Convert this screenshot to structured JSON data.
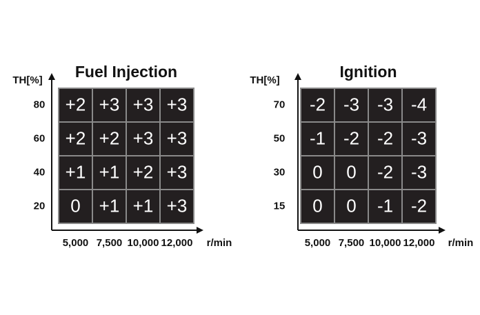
{
  "panels": [
    {
      "title": "Fuel Injection",
      "y_label": "TH[%]",
      "x_label": "r/min",
      "rows": [
        "80",
        "60",
        "40",
        "20"
      ],
      "columns": [
        "5,000",
        "7,500",
        "10,000",
        "12,000"
      ],
      "cells": [
        [
          "+2",
          "+3",
          "+3",
          "+3"
        ],
        [
          "+2",
          "+2",
          "+3",
          "+3"
        ],
        [
          "+1",
          "+1",
          "+2",
          "+3"
        ],
        [
          "0",
          "+1",
          "+1",
          "+3"
        ]
      ]
    },
    {
      "title": "Ignition",
      "y_label": "TH[%]",
      "x_label": "r/min",
      "rows": [
        "70",
        "50",
        "30",
        "15"
      ],
      "columns": [
        "5,000",
        "7,500",
        "10,000",
        "12,000"
      ],
      "cells": [
        [
          "-2",
          "-3",
          "-3",
          "-4"
        ],
        [
          "-1",
          "-2",
          "-2",
          "-3"
        ],
        [
          "0",
          "0",
          "-2",
          "-3"
        ],
        [
          "0",
          "0",
          "-1",
          "-2"
        ]
      ]
    }
  ]
}
